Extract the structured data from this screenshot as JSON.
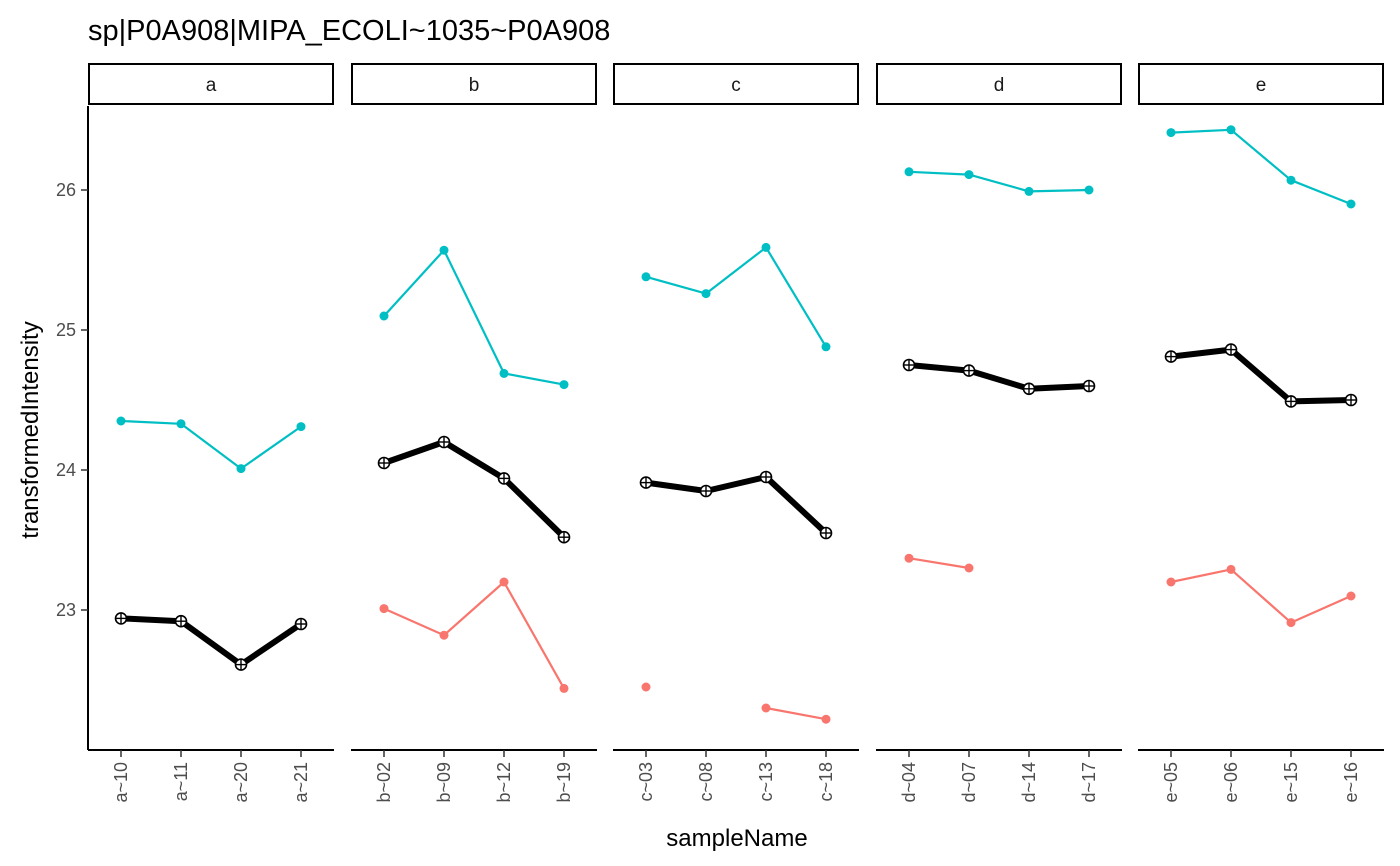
{
  "chart_data": {
    "type": "line",
    "title": "sp|P0A908|MIPA_ECOLI~1035~P0A908",
    "xlabel": "sampleName",
    "ylabel": "transformedIntensity",
    "ylim": [
      22.0,
      26.6
    ],
    "yticks": [
      23,
      24,
      25,
      26
    ],
    "grid": false,
    "legend": "none",
    "colors": {
      "summary": "#000000",
      "upper": "#00BFC4",
      "lower": "#F8766D"
    },
    "facets": [
      {
        "label": "a",
        "samples": [
          "a~10",
          "a~11",
          "a~20",
          "a~21"
        ],
        "upper": [
          24.35,
          24.33,
          24.01,
          24.31
        ],
        "summary": [
          22.94,
          22.92,
          22.61,
          22.9
        ],
        "lower": [
          null,
          null,
          null,
          null
        ]
      },
      {
        "label": "b",
        "samples": [
          "b~02",
          "b~09",
          "b~12",
          "b~19"
        ],
        "upper": [
          25.1,
          25.57,
          24.69,
          24.61
        ],
        "summary": [
          24.05,
          24.2,
          23.94,
          23.52
        ],
        "lower": [
          23.01,
          22.82,
          23.2,
          22.44
        ]
      },
      {
        "label": "c",
        "samples": [
          "c~03",
          "c~08",
          "c~13",
          "c~18"
        ],
        "upper": [
          25.38,
          25.26,
          25.59,
          24.88
        ],
        "summary": [
          23.91,
          23.85,
          23.95,
          23.55
        ],
        "lower": [
          22.45,
          null,
          22.3,
          22.22
        ]
      },
      {
        "label": "d",
        "samples": [
          "d~04",
          "d~07",
          "d~14",
          "d~17"
        ],
        "upper": [
          26.13,
          26.11,
          25.99,
          26.0
        ],
        "summary": [
          24.75,
          24.71,
          24.58,
          24.6
        ],
        "lower": [
          23.37,
          23.3,
          null,
          null
        ]
      },
      {
        "label": "e",
        "samples": [
          "e~05",
          "e~06",
          "e~15",
          "e~16"
        ],
        "upper": [
          26.41,
          26.43,
          26.07,
          25.9
        ],
        "summary": [
          24.81,
          24.86,
          24.49,
          24.5
        ],
        "lower": [
          23.2,
          23.29,
          22.91,
          23.1
        ]
      }
    ]
  }
}
